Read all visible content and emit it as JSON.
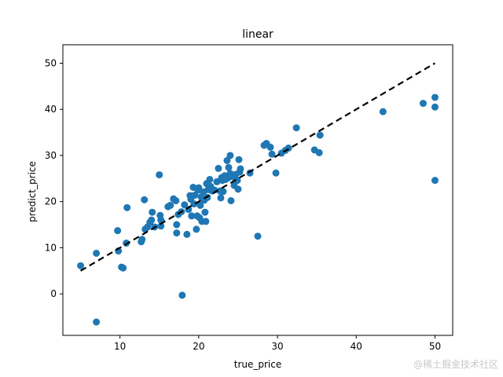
{
  "chart_data": {
    "type": "scatter",
    "title": "linear",
    "xlabel": "true_price",
    "ylabel": "predict_price",
    "xlim": [
      2.75,
      52.25
    ],
    "ylim": [
      -9.0,
      54.0
    ],
    "xticks": [
      10,
      20,
      30,
      40,
      50
    ],
    "yticks": [
      0,
      10,
      20,
      30,
      40,
      50
    ],
    "point_color": "#1f77b4",
    "reference_line": {
      "style": "dashed",
      "color": "#000000",
      "points": [
        [
          5,
          5
        ],
        [
          50,
          50
        ]
      ]
    },
    "points": [
      [
        5.0,
        6.1
      ],
      [
        7.0,
        8.8
      ],
      [
        7.0,
        -6.1
      ],
      [
        9.7,
        13.7
      ],
      [
        9.8,
        9.3
      ],
      [
        10.2,
        5.8
      ],
      [
        10.4,
        5.6
      ],
      [
        10.8,
        11.0
      ],
      [
        10.9,
        18.7
      ],
      [
        12.7,
        11.3
      ],
      [
        12.8,
        11.8
      ],
      [
        13.1,
        20.4
      ],
      [
        13.2,
        14.0
      ],
      [
        13.5,
        14.5
      ],
      [
        13.8,
        15.5
      ],
      [
        14.0,
        16.0
      ],
      [
        14.1,
        17.7
      ],
      [
        14.4,
        14.5
      ],
      [
        15.0,
        25.8
      ],
      [
        15.1,
        17.0
      ],
      [
        15.2,
        16.0
      ],
      [
        15.2,
        14.7
      ],
      [
        16.1,
        18.9
      ],
      [
        16.4,
        19.2
      ],
      [
        16.8,
        20.6
      ],
      [
        17.1,
        20.2
      ],
      [
        17.2,
        15.0
      ],
      [
        17.2,
        13.2
      ],
      [
        17.4,
        17.2
      ],
      [
        17.8,
        17.8
      ],
      [
        17.9,
        -0.3
      ],
      [
        18.2,
        19.3
      ],
      [
        18.5,
        12.9
      ],
      [
        18.7,
        18.3
      ],
      [
        18.9,
        21.3
      ],
      [
        19.0,
        20.5
      ],
      [
        19.1,
        16.9
      ],
      [
        19.3,
        23.1
      ],
      [
        19.4,
        19.5
      ],
      [
        19.5,
        21.4
      ],
      [
        19.7,
        14.0
      ],
      [
        19.8,
        16.9
      ],
      [
        19.9,
        22.5
      ],
      [
        20.0,
        23.0
      ],
      [
        20.1,
        16.5
      ],
      [
        20.2,
        19.2
      ],
      [
        20.3,
        21.0
      ],
      [
        20.4,
        15.7
      ],
      [
        20.6,
        22.1
      ],
      [
        20.7,
        20.3
      ],
      [
        20.8,
        17.7
      ],
      [
        20.9,
        15.7
      ],
      [
        21.0,
        23.9
      ],
      [
        21.1,
        20.9
      ],
      [
        21.2,
        22.6
      ],
      [
        21.4,
        24.8
      ],
      [
        21.5,
        23.3
      ],
      [
        21.7,
        22.3
      ],
      [
        22.0,
        22.5
      ],
      [
        22.3,
        24.3
      ],
      [
        22.5,
        27.2
      ],
      [
        22.7,
        22.3
      ],
      [
        22.8,
        20.8
      ],
      [
        22.9,
        25.2
      ],
      [
        23.0,
        24.6
      ],
      [
        23.1,
        22.2
      ],
      [
        23.3,
        25.6
      ],
      [
        23.4,
        24.8
      ],
      [
        23.6,
        28.9
      ],
      [
        23.7,
        25.1
      ],
      [
        23.8,
        27.4
      ],
      [
        24.0,
        30.0
      ],
      [
        24.0,
        26.1
      ],
      [
        24.1,
        20.2
      ],
      [
        24.3,
        25.4
      ],
      [
        24.5,
        23.5
      ],
      [
        24.7,
        25.9
      ],
      [
        24.9,
        24.6
      ],
      [
        25.0,
        22.7
      ],
      [
        25.1,
        29.1
      ],
      [
        25.2,
        26.4
      ],
      [
        25.3,
        27.1
      ],
      [
        26.5,
        26.2
      ],
      [
        27.5,
        12.5
      ],
      [
        28.3,
        32.2
      ],
      [
        28.6,
        32.6
      ],
      [
        29.1,
        31.8
      ],
      [
        29.3,
        30.3
      ],
      [
        29.8,
        26.2
      ],
      [
        30.5,
        30.5
      ],
      [
        31.0,
        31.1
      ],
      [
        31.4,
        31.6
      ],
      [
        32.4,
        36.0
      ],
      [
        34.7,
        31.2
      ],
      [
        35.3,
        30.6
      ],
      [
        35.4,
        34.4
      ],
      [
        43.4,
        39.5
      ],
      [
        48.5,
        41.3
      ],
      [
        50.0,
        42.6
      ],
      [
        50.0,
        40.5
      ],
      [
        50.0,
        24.6
      ]
    ]
  },
  "watermark": "@稀土掘金技术社区"
}
